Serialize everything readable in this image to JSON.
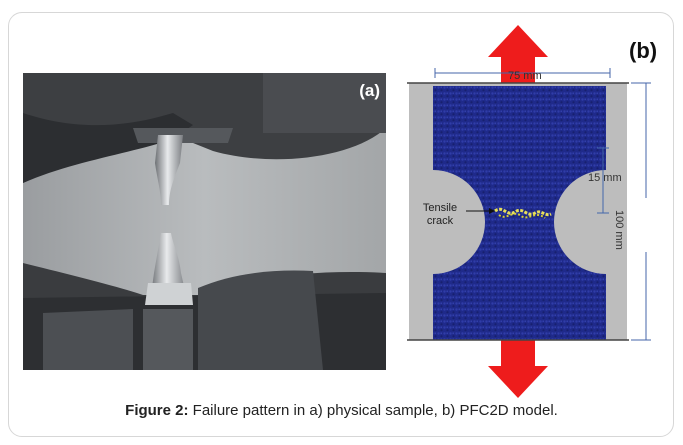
{
  "panel_a": {
    "label": "(a)"
  },
  "panel_b": {
    "label": "(b)",
    "width_dim": "75 mm",
    "neck_dim": "15 mm",
    "height_dim": "100 mm",
    "crack_label_line1": "Tensile",
    "crack_label_line2": "crack"
  },
  "caption": {
    "prefix": "Figure 2:",
    "text": " Failure pattern in a) physical sample, b) PFC2D model."
  },
  "colors": {
    "specimen_blue": "#1f2a8a",
    "arrow_red": "#ee1c1c",
    "grip_gray": "#bdbdbd",
    "crack_yellow": "#e8e05a"
  }
}
